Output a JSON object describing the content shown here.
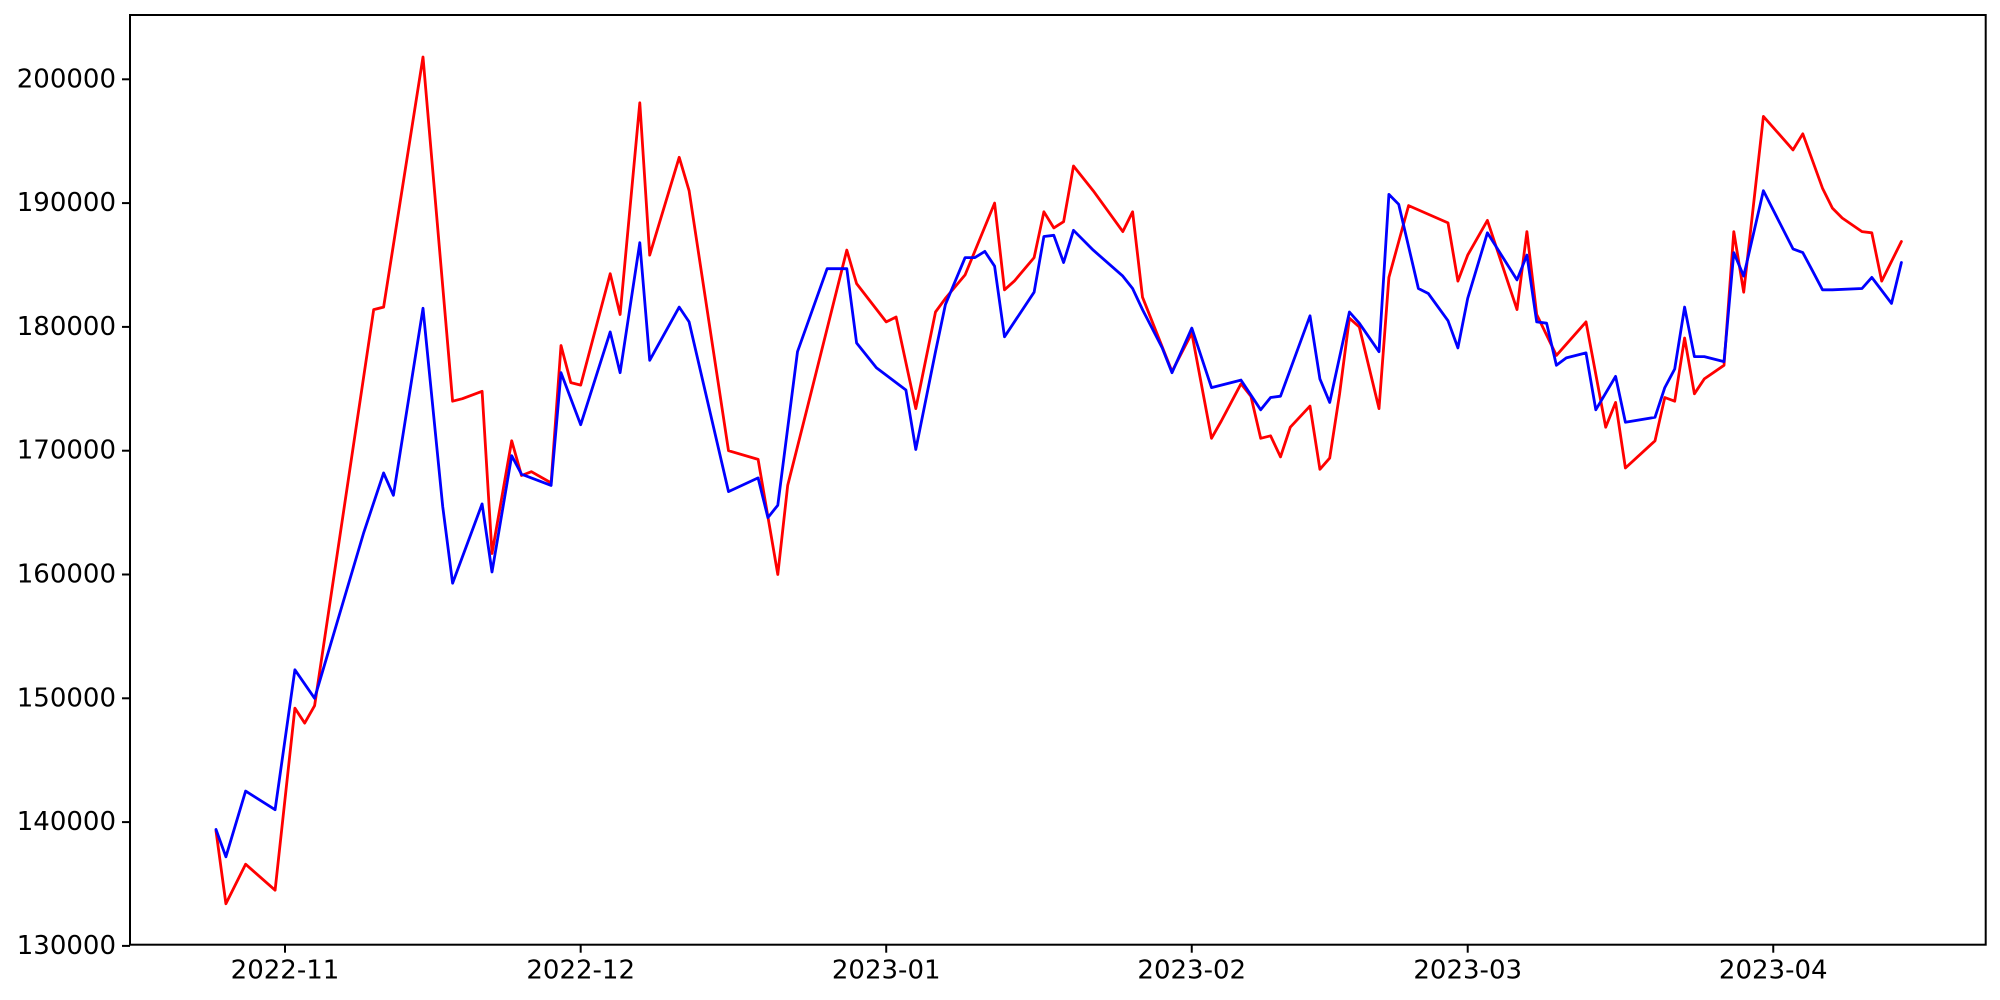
{
  "chart_data": {
    "type": "line",
    "title": "",
    "xlabel": "",
    "ylabel": "",
    "grid": false,
    "legend": null,
    "background": "#ffffff",
    "axis_color": "#000000",
    "ylim": [
      129950,
      205250
    ],
    "xlim_dates": [
      "2022-10-16",
      "2023-04-23"
    ],
    "y_ticks": [
      130000,
      140000,
      150000,
      160000,
      170000,
      180000,
      190000,
      200000
    ],
    "y_tick_labels": [
      "130000",
      "140000",
      "150000",
      "160000",
      "170000",
      "180000",
      "190000",
      "200000"
    ],
    "x_ticks": [
      "2022-11-01",
      "2022-12-01",
      "2023-01-01",
      "2023-02-01",
      "2023-03-01",
      "2023-04-01"
    ],
    "x_tick_labels": [
      "2022-11",
      "2022-12",
      "2023-01",
      "2023-02",
      "2023-03",
      "2023-04"
    ],
    "series": [
      {
        "name": "red-line",
        "color": "#ff0000",
        "points": [
          [
            "2022-10-25",
            139300
          ],
          [
            "2022-10-26",
            133400
          ],
          [
            "2022-10-28",
            136600
          ],
          [
            "2022-10-31",
            134500
          ],
          [
            "2022-11-02",
            149200
          ],
          [
            "2022-11-03",
            148000
          ],
          [
            "2022-11-04",
            149400
          ],
          [
            "2022-11-10",
            181400
          ],
          [
            "2022-11-11",
            181600
          ],
          [
            "2022-11-15",
            201800
          ],
          [
            "2022-11-18",
            174000
          ],
          [
            "2022-11-19",
            174200
          ],
          [
            "2022-11-21",
            174800
          ],
          [
            "2022-11-22",
            161700
          ],
          [
            "2022-11-24",
            170800
          ],
          [
            "2022-11-25",
            168000
          ],
          [
            "2022-11-26",
            168300
          ],
          [
            "2022-11-28",
            167400
          ],
          [
            "2022-11-29",
            178500
          ],
          [
            "2022-11-30",
            175500
          ],
          [
            "2022-12-01",
            175300
          ],
          [
            "2022-12-04",
            184300
          ],
          [
            "2022-12-05",
            181000
          ],
          [
            "2022-12-07",
            198100
          ],
          [
            "2022-12-08",
            185800
          ],
          [
            "2022-12-11",
            193700
          ],
          [
            "2022-12-12",
            191000
          ],
          [
            "2022-12-16",
            170000
          ],
          [
            "2022-12-19",
            169300
          ],
          [
            "2022-12-21",
            160000
          ],
          [
            "2022-12-22",
            167200
          ],
          [
            "2022-12-24",
            173500
          ],
          [
            "2022-12-28",
            186200
          ],
          [
            "2022-12-29",
            183500
          ],
          [
            "2023-01-01",
            180400
          ],
          [
            "2023-01-02",
            180800
          ],
          [
            "2023-01-04",
            173400
          ],
          [
            "2023-01-06",
            181200
          ],
          [
            "2023-01-07",
            182300
          ],
          [
            "2023-01-09",
            184200
          ],
          [
            "2023-01-12",
            190000
          ],
          [
            "2023-01-13",
            183000
          ],
          [
            "2023-01-14",
            183700
          ],
          [
            "2023-01-16",
            185600
          ],
          [
            "2023-01-17",
            189300
          ],
          [
            "2023-01-18",
            188000
          ],
          [
            "2023-01-19",
            188500
          ],
          [
            "2023-01-20",
            193000
          ],
          [
            "2023-01-22",
            191000
          ],
          [
            "2023-01-25",
            187700
          ],
          [
            "2023-01-26",
            189300
          ],
          [
            "2023-01-27",
            182400
          ],
          [
            "2023-01-30",
            176400
          ],
          [
            "2023-02-01",
            179500
          ],
          [
            "2023-02-03",
            171000
          ],
          [
            "2023-02-04",
            172400
          ],
          [
            "2023-02-06",
            175400
          ],
          [
            "2023-02-07",
            174400
          ],
          [
            "2023-02-08",
            171000
          ],
          [
            "2023-02-09",
            171200
          ],
          [
            "2023-02-10",
            169500
          ],
          [
            "2023-02-11",
            171900
          ],
          [
            "2023-02-13",
            173600
          ],
          [
            "2023-02-14",
            168500
          ],
          [
            "2023-02-15",
            169400
          ],
          [
            "2023-02-16",
            174600
          ],
          [
            "2023-02-17",
            180700
          ],
          [
            "2023-02-18",
            180000
          ],
          [
            "2023-02-20",
            173400
          ],
          [
            "2023-02-21",
            184000
          ],
          [
            "2023-02-23",
            189800
          ],
          [
            "2023-02-27",
            188400
          ],
          [
            "2023-02-28",
            183700
          ],
          [
            "2023-03-01",
            185800
          ],
          [
            "2023-03-03",
            188600
          ],
          [
            "2023-03-06",
            181400
          ],
          [
            "2023-03-07",
            187700
          ],
          [
            "2023-03-08",
            181000
          ],
          [
            "2023-03-10",
            177700
          ],
          [
            "2023-03-13",
            180400
          ],
          [
            "2023-03-15",
            171900
          ],
          [
            "2023-03-16",
            173900
          ],
          [
            "2023-03-17",
            168600
          ],
          [
            "2023-03-20",
            170800
          ],
          [
            "2023-03-21",
            174300
          ],
          [
            "2023-03-22",
            174000
          ],
          [
            "2023-03-23",
            179100
          ],
          [
            "2023-03-24",
            174600
          ],
          [
            "2023-03-25",
            175800
          ],
          [
            "2023-03-27",
            176900
          ],
          [
            "2023-03-28",
            187700
          ],
          [
            "2023-03-29",
            182800
          ],
          [
            "2023-03-31",
            197000
          ],
          [
            "2023-04-03",
            194300
          ],
          [
            "2023-04-04",
            195600
          ],
          [
            "2023-04-06",
            191200
          ],
          [
            "2023-04-07",
            189600
          ],
          [
            "2023-04-08",
            188800
          ],
          [
            "2023-04-10",
            187700
          ],
          [
            "2023-04-11",
            187600
          ],
          [
            "2023-04-12",
            183700
          ],
          [
            "2023-04-14",
            186900
          ]
        ]
      },
      {
        "name": "blue-line",
        "color": "#0000ff",
        "points": [
          [
            "2022-10-25",
            139400
          ],
          [
            "2022-10-26",
            137200
          ],
          [
            "2022-10-28",
            142500
          ],
          [
            "2022-10-31",
            141000
          ],
          [
            "2022-11-02",
            152300
          ],
          [
            "2022-11-04",
            150000
          ],
          [
            "2022-11-09",
            163400
          ],
          [
            "2022-11-11",
            168200
          ],
          [
            "2022-11-12",
            166400
          ],
          [
            "2022-11-15",
            181500
          ],
          [
            "2022-11-17",
            165500
          ],
          [
            "2022-11-18",
            159300
          ],
          [
            "2022-11-21",
            165700
          ],
          [
            "2022-11-22",
            160200
          ],
          [
            "2022-11-24",
            169600
          ],
          [
            "2022-11-25",
            168100
          ],
          [
            "2022-11-28",
            167200
          ],
          [
            "2022-11-29",
            176300
          ],
          [
            "2022-12-01",
            172100
          ],
          [
            "2022-12-04",
            179600
          ],
          [
            "2022-12-05",
            176300
          ],
          [
            "2022-12-07",
            186800
          ],
          [
            "2022-12-08",
            177300
          ],
          [
            "2022-12-11",
            181600
          ],
          [
            "2022-12-12",
            180400
          ],
          [
            "2022-12-16",
            166700
          ],
          [
            "2022-12-19",
            167800
          ],
          [
            "2022-12-20",
            164600
          ],
          [
            "2022-12-21",
            165600
          ],
          [
            "2022-12-23",
            178000
          ],
          [
            "2022-12-26",
            184700
          ],
          [
            "2022-12-28",
            184700
          ],
          [
            "2022-12-29",
            178700
          ],
          [
            "2022-12-31",
            176700
          ],
          [
            "2023-01-03",
            174900
          ],
          [
            "2023-01-04",
            170100
          ],
          [
            "2023-01-06",
            178000
          ],
          [
            "2023-01-07",
            181800
          ],
          [
            "2023-01-09",
            185600
          ],
          [
            "2023-01-10",
            185600
          ],
          [
            "2023-01-11",
            186100
          ],
          [
            "2023-01-12",
            184900
          ],
          [
            "2023-01-13",
            179200
          ],
          [
            "2023-01-16",
            182800
          ],
          [
            "2023-01-17",
            187300
          ],
          [
            "2023-01-18",
            187400
          ],
          [
            "2023-01-19",
            185200
          ],
          [
            "2023-01-20",
            187800
          ],
          [
            "2023-01-22",
            186200
          ],
          [
            "2023-01-25",
            184100
          ],
          [
            "2023-01-26",
            183100
          ],
          [
            "2023-01-27",
            181400
          ],
          [
            "2023-01-29",
            178300
          ],
          [
            "2023-01-30",
            176300
          ],
          [
            "2023-02-01",
            179900
          ],
          [
            "2023-02-03",
            175100
          ],
          [
            "2023-02-06",
            175700
          ],
          [
            "2023-02-08",
            173300
          ],
          [
            "2023-02-09",
            174300
          ],
          [
            "2023-02-10",
            174400
          ],
          [
            "2023-02-13",
            180900
          ],
          [
            "2023-02-14",
            175800
          ],
          [
            "2023-02-15",
            173900
          ],
          [
            "2023-02-17",
            181200
          ],
          [
            "2023-02-18",
            180300
          ],
          [
            "2023-02-20",
            178000
          ],
          [
            "2023-02-21",
            190700
          ],
          [
            "2023-02-22",
            189900
          ],
          [
            "2023-02-24",
            183100
          ],
          [
            "2023-02-25",
            182700
          ],
          [
            "2023-02-27",
            180500
          ],
          [
            "2023-02-28",
            178300
          ],
          [
            "2023-03-01",
            182300
          ],
          [
            "2023-03-03",
            187600
          ],
          [
            "2023-03-06",
            183800
          ],
          [
            "2023-03-07",
            185800
          ],
          [
            "2023-03-08",
            180400
          ],
          [
            "2023-03-09",
            180300
          ],
          [
            "2023-03-10",
            176900
          ],
          [
            "2023-03-11",
            177500
          ],
          [
            "2023-03-13",
            177900
          ],
          [
            "2023-03-14",
            173300
          ],
          [
            "2023-03-16",
            176000
          ],
          [
            "2023-03-17",
            172300
          ],
          [
            "2023-03-20",
            172700
          ],
          [
            "2023-03-21",
            175100
          ],
          [
            "2023-03-22",
            176600
          ],
          [
            "2023-03-23",
            181600
          ],
          [
            "2023-03-24",
            177600
          ],
          [
            "2023-03-25",
            177600
          ],
          [
            "2023-03-27",
            177200
          ],
          [
            "2023-03-28",
            186000
          ],
          [
            "2023-03-29",
            184100
          ],
          [
            "2023-03-31",
            191000
          ],
          [
            "2023-04-03",
            186300
          ],
          [
            "2023-04-04",
            186000
          ],
          [
            "2023-04-05",
            184500
          ],
          [
            "2023-04-06",
            183000
          ],
          [
            "2023-04-07",
            183000
          ],
          [
            "2023-04-10",
            183100
          ],
          [
            "2023-04-11",
            184000
          ],
          [
            "2023-04-13",
            181900
          ],
          [
            "2023-04-14",
            185200
          ]
        ]
      }
    ]
  }
}
